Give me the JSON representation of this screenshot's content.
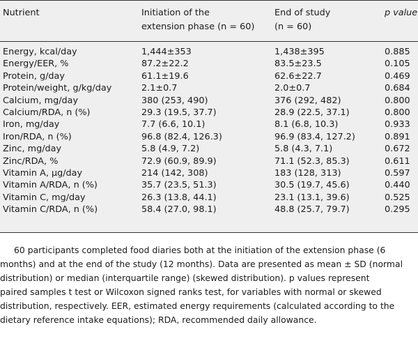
{
  "table": {
    "headers": {
      "nutrient": "Nutrient",
      "initiation_line1": "Initiation of the",
      "initiation_line2": "extension phase (n = 60)",
      "end_line1": "End of study",
      "end_line2": "(n = 60)",
      "pvalue": "p value"
    },
    "rows": [
      {
        "nutrient": "Energy, kcal/day",
        "initiation": "1,444±353",
        "end": "1,438±395",
        "p": "0.885"
      },
      {
        "nutrient": "Energy/EER, %",
        "initiation": "87.2±22.2",
        "end": "83.5±23.5",
        "p": "0.105"
      },
      {
        "nutrient": "Protein, g/day",
        "initiation": "61.1±19.6",
        "end": "62.6±22.7",
        "p": "0.469"
      },
      {
        "nutrient": "Protein/weight, g/kg/day",
        "initiation": "2.1±0.7",
        "end": "2.0±0.7",
        "p": "0.684"
      },
      {
        "nutrient": "Calcium, mg/day",
        "initiation": "380 (253, 490)",
        "end": "376 (292, 482)",
        "p": "0.800"
      },
      {
        "nutrient": "Calcium/RDA, n (%)",
        "initiation": "29.3 (19.5, 37.7)",
        "end": "28.9 (22.5, 37.1)",
        "p": "0.800"
      },
      {
        "nutrient": "Iron, mg/day",
        "initiation": "7.7 (6.6, 10.1)",
        "end": "8.1 (6.8, 10.3)",
        "p": "0.933"
      },
      {
        "nutrient": "Iron/RDA, n (%)",
        "initiation": "96.8 (82.4, 126.3)",
        "end": "96.9 (83.4, 127.2)",
        "p": "0.891"
      },
      {
        "nutrient": "Zinc, mg/day",
        "initiation": "5.8 (4.9, 7.2)",
        "end": "5.8 (4.3, 7.1)",
        "p": "0.672"
      },
      {
        "nutrient": "Zinc/RDA, %",
        "initiation": "72.9 (60.9, 89.9)",
        "end": "71.1 (52.3, 85.3)",
        "p": "0.611"
      },
      {
        "nutrient": "Vitamin A, µg/day",
        "initiation": "214 (142, 308)",
        "end": "183 (128, 313)",
        "p": "0.597"
      },
      {
        "nutrient": "Vitamin A/RDA, n (%)",
        "initiation": "35.7 (23.5, 51.3)",
        "end": "30.5 (19.7, 45.6)",
        "p": "0.440"
      },
      {
        "nutrient": "Vitamin C, mg/day",
        "initiation": "26.3 (13.8, 44.1)",
        "end": "23.1 (13.1, 39.6)",
        "p": "0.525"
      },
      {
        "nutrient": "Vitamin C/RDA, n (%)",
        "initiation": "58.4 (27.0, 98.1)",
        "end": "48.8 (25.7, 79.7)",
        "p": "0.295"
      }
    ]
  },
  "footnote": {
    "line1": "60 participants completed food diaries both at the initiation of the extension phase (6",
    "line2": "months) and at the end of the study (12 months). Data are presented as mean ± SD (normal",
    "line3": "distribution) or median (interquartile range) (skewed distribution). p values represent",
    "line4": "paired samples t test or Wilcoxon signed ranks test, for variables with normal or skewed",
    "line5": "distribution, respectively. EER, estimated energy requirements (calculated according to the",
    "line6": "dietary reference intake equations); RDA, recommended daily allowance."
  }
}
